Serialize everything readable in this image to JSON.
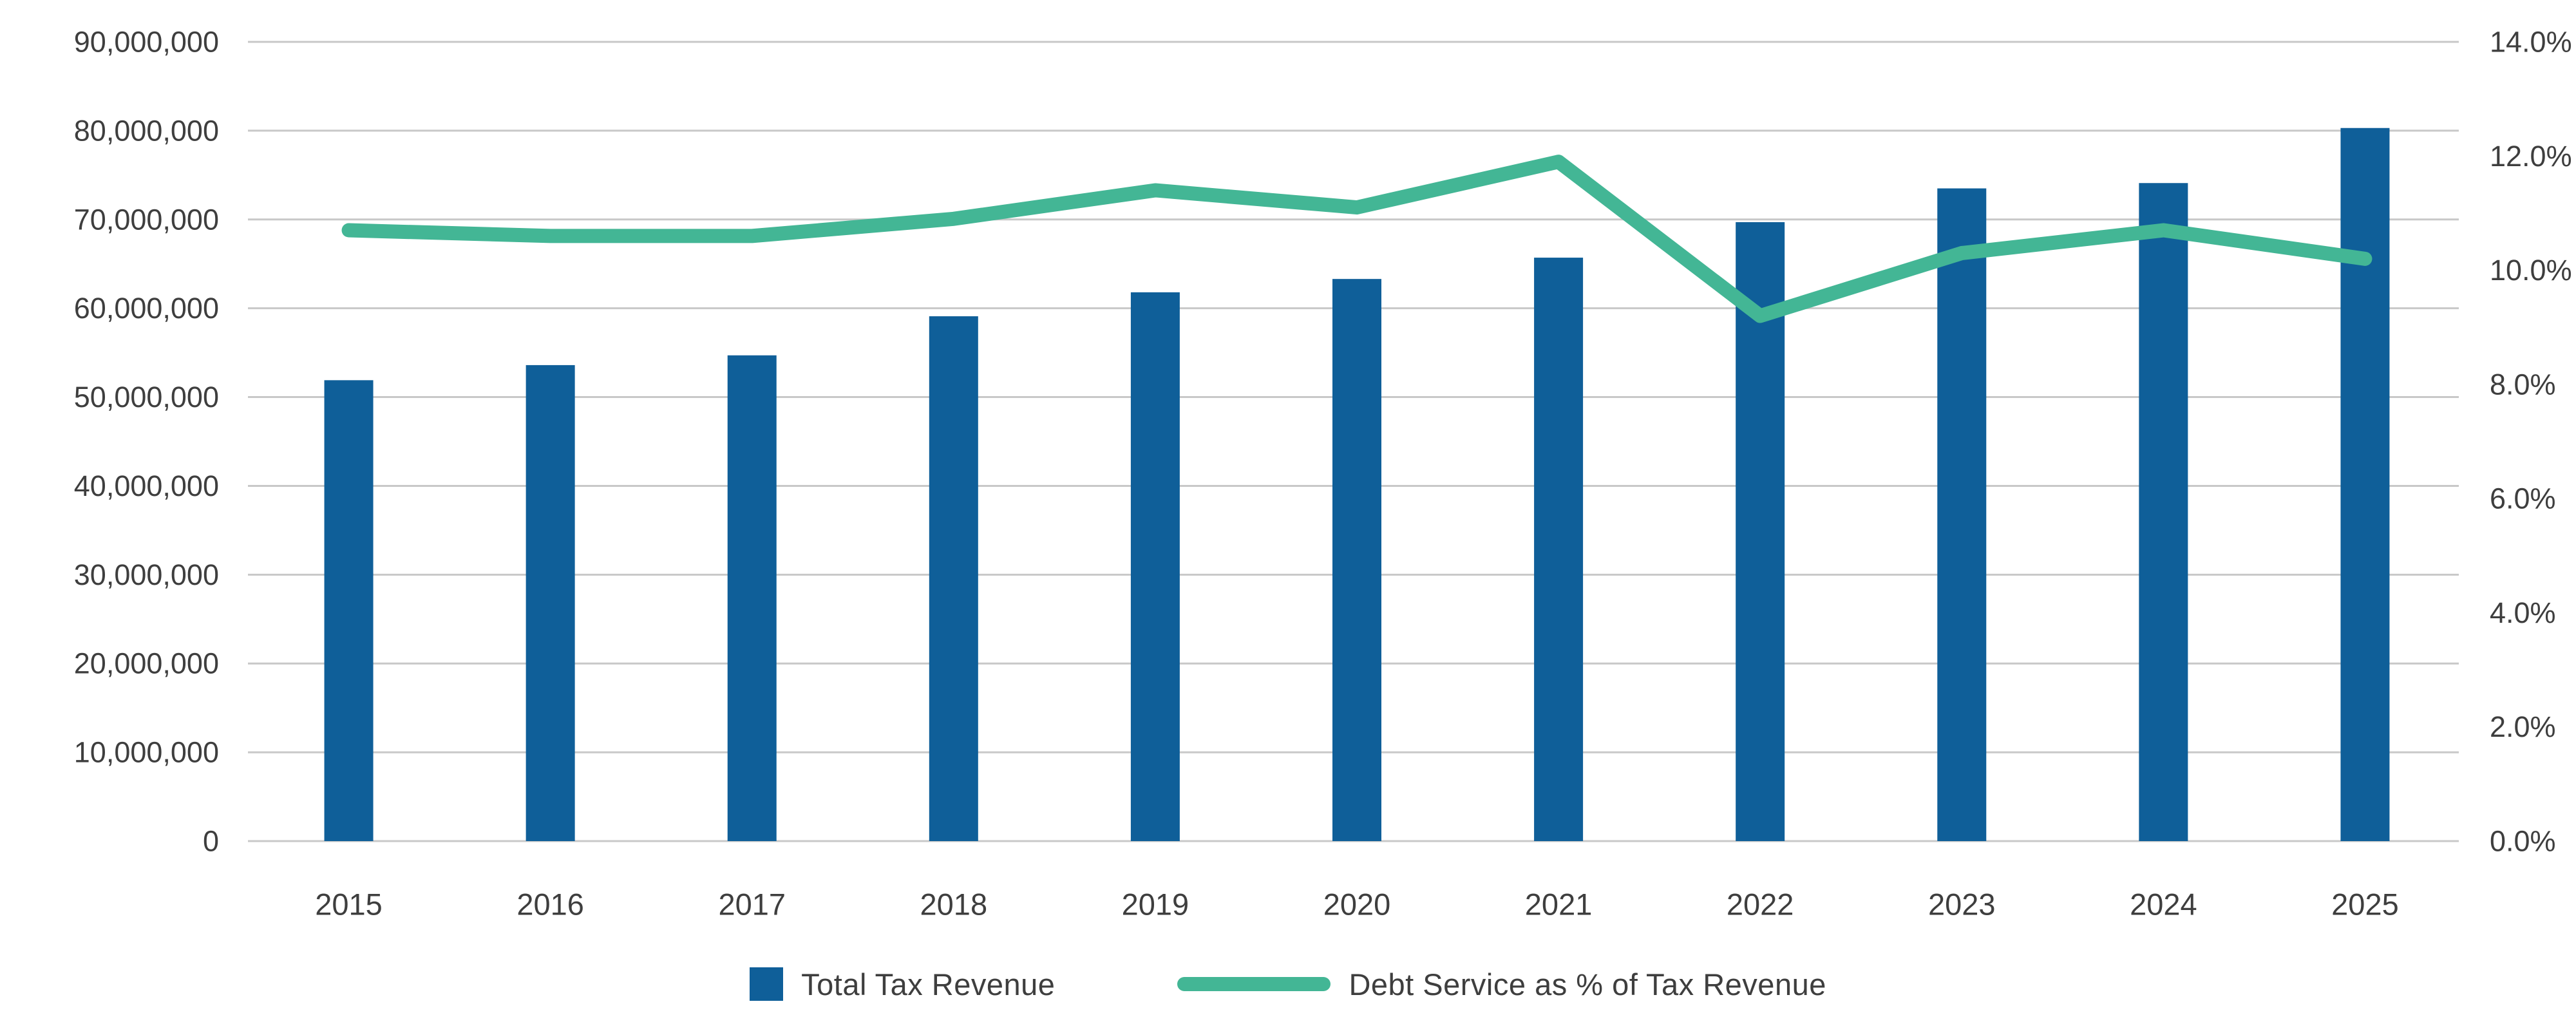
{
  "chart_data": {
    "type": "bar",
    "subtype": "combo-bar-line",
    "title": "",
    "categories": [
      "2015",
      "2016",
      "2017",
      "2018",
      "2019",
      "2020",
      "2021",
      "2022",
      "2023",
      "2024",
      "2025"
    ],
    "series": [
      {
        "name": "Total Tax Revenue",
        "type": "bar",
        "yaxis": "left",
        "color": "#0f5f99",
        "values": [
          51900000,
          53600000,
          54700000,
          59100000,
          61800000,
          63300000,
          65700000,
          69700000,
          73500000,
          74100000,
          80300000
        ]
      },
      {
        "name": "Debt Service as % of Tax Revenue",
        "type": "line",
        "yaxis": "right",
        "color": "#43b695",
        "values": [
          10.7,
          10.6,
          10.6,
          10.9,
          11.4,
          11.1,
          11.9,
          9.2,
          10.3,
          10.7,
          10.2
        ]
      }
    ],
    "left_axis": {
      "min": 0,
      "max": 90000000,
      "step": 10000000,
      "tick_labels": [
        "0",
        "10,000,000",
        "20,000,000",
        "30,000,000",
        "40,000,000",
        "50,000,000",
        "60,000,000",
        "70,000,000",
        "80,000,000",
        "90,000,000"
      ]
    },
    "right_axis": {
      "min": 0,
      "max": 14,
      "step": 2,
      "tick_labels": [
        "0.0%",
        "2.0%",
        "4.0%",
        "6.0%",
        "8.0%",
        "10.0%",
        "12.0%",
        "14.0%"
      ]
    },
    "grid": {
      "horizontal": true,
      "vertical": false,
      "color": "#c8c8c8"
    },
    "legend_position": "bottom-center"
  },
  "legend": {
    "items": [
      {
        "label": "Total Tax Revenue",
        "swatch": "square",
        "color": "#0f5f99"
      },
      {
        "label": "Debt Service as % of Tax Revenue",
        "swatch": "line",
        "color": "#43b695"
      }
    ]
  },
  "colors": {
    "background": "#ffffff",
    "bar": "#0f5f99",
    "line": "#43b695",
    "grid": "#c8c8c8",
    "text": "#3e3e3e"
  }
}
